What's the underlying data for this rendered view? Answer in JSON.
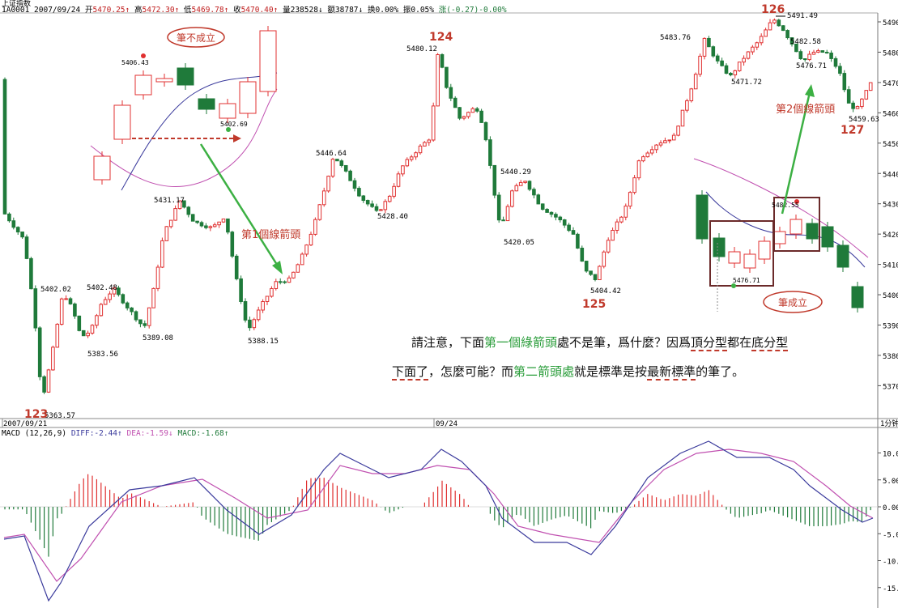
{
  "header": {
    "title_glyph": "上证指数",
    "info_prefix": "1A0001 2007/09/24",
    "open_label": "开",
    "open": "5470.25",
    "high_label": "高",
    "high": "5472.30",
    "low_label": "低",
    "low": "5469.78",
    "close_label": "收",
    "close": "5470.40",
    "volume_label": "量",
    "volume": "238528",
    "amount_label": "额",
    "amount": "38787",
    "turnover_label": "换",
    "turnover": "0.00%",
    "amplitude_label": "振",
    "amplitude": "0.05%",
    "change_label": "涨",
    "change": "(-0.27)-0.00%"
  },
  "colors": {
    "up": "#e03030",
    "down": "#1f7a3a",
    "arrow": "#3cb043",
    "dif": "#3a3a9c",
    "dea": "#c050b0",
    "box": "#6b2a2a",
    "label": "#c0392b"
  },
  "chart_data": [
    {
      "type": "candlestick",
      "title": "上证指数 1分钟",
      "ylim": [
        5363,
        5493
      ],
      "yticks": [
        "5490.",
        "5480.",
        "5470.",
        "5460.",
        "5450.",
        "5440.",
        "5430.",
        "5420.",
        "5410.",
        "5400.",
        "5390.",
        "5380.",
        "5370."
      ],
      "dates": [
        "2007/09/21",
        "09/24"
      ],
      "period_label": "1分钟",
      "price_labels": [
        "5363.57",
        "5402.02",
        "5383.56",
        "5402.48",
        "5389.08",
        "5431.17",
        "5388.15",
        "5446.64",
        "5428.40",
        "5480.12",
        "5440.29",
        "5420.05",
        "5404.42",
        "5483.76",
        "5471.72",
        "5491.49",
        "5482.58",
        "5476.71",
        "5459.63"
      ],
      "stroke_labels": [
        "123",
        "124",
        "125",
        "126",
        "127"
      ],
      "key_points": [
        {
          "label": "123",
          "value": 5363.57
        },
        {
          "label": "124",
          "value": 5480.12
        },
        {
          "label": "125",
          "value": 5404.42
        },
        {
          "label": "126",
          "value": 5491.49
        },
        {
          "label": "127",
          "value": 5459.63
        }
      ],
      "annotations": {
        "first_arrow_label": "第1個線箭頭",
        "second_arrow_label": "第2個線箭頭",
        "inset1_label": "筆不成立",
        "inset1_prices": [
          "5406.43",
          "5402.69"
        ],
        "inset2_label": "筆成立",
        "inset2_prices": [
          "5482.55",
          "5476.71"
        ]
      }
    },
    {
      "type": "macd",
      "title": "MACD (12,26,9)",
      "series": [
        {
          "name": "DIFF",
          "last": -2.44
        },
        {
          "name": "DEA",
          "last": -1.59
        },
        {
          "name": "MACD",
          "last": -1.68
        }
      ],
      "ylim": [
        -17,
        13
      ],
      "yticks": [
        "10.0",
        "5.00",
        "0.00",
        "-5.0",
        "-10.0",
        "-15.0"
      ]
    }
  ],
  "macd": {
    "name": "MACD (12,26,9)",
    "diff_label": "DIFF:",
    "diff": "-2.44",
    "dea_label": "DEA:",
    "dea": "-1.59",
    "macd_label": "MACD:",
    "macd": "-1.68"
  },
  "note": {
    "line1_a": "請注意，下面",
    "line1_b": "第一個綠箭頭",
    "line1_c": "處不是筆，爲什麼？因爲",
    "line1_d": "頂分型",
    "line1_e": "都在",
    "line1_f": "底分型",
    "line2_a": "下面了",
    "line2_b": "，怎麼可能？而",
    "line2_c": "第二箭頭處",
    "line2_d": "就是標準是按",
    "line2_e": "最新標準",
    "line2_f": "的筆了。"
  }
}
